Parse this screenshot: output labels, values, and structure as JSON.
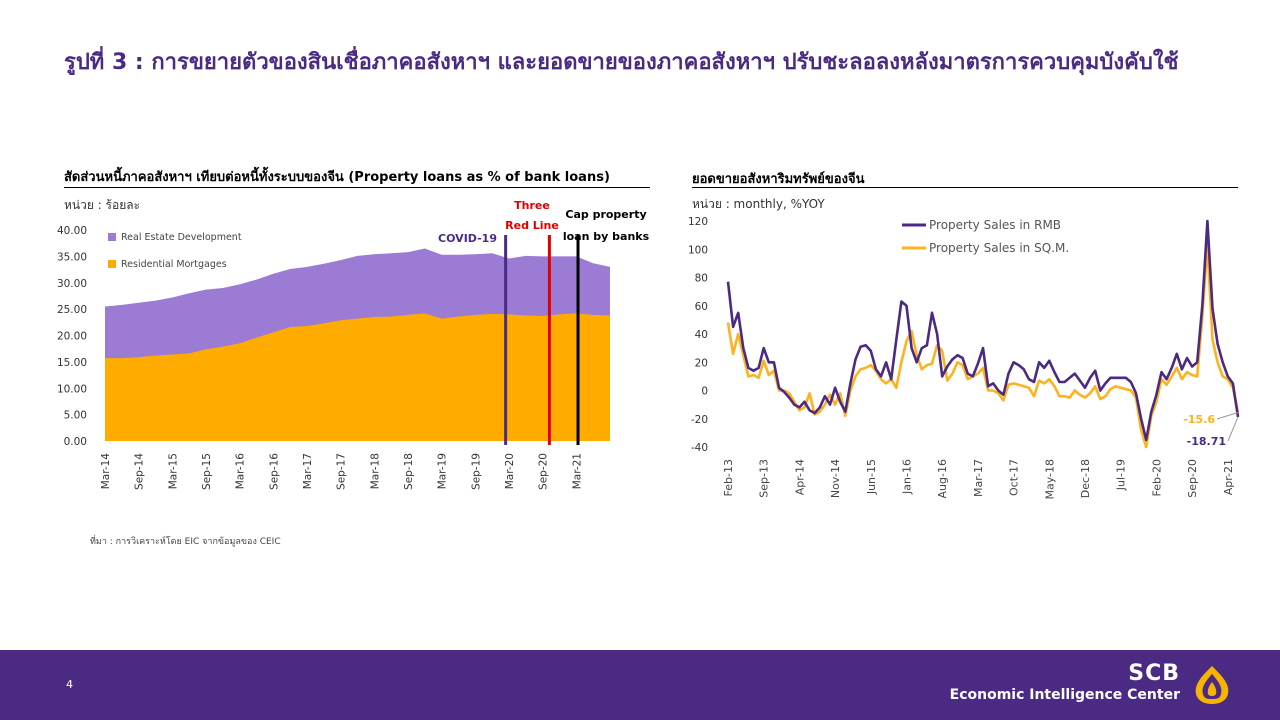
{
  "page": {
    "title": "รูปที่ 3 : การขยายตัวของสินเชื่อภาคอสังหาฯ และยอดขายของภาคอสังหาฯ ปรับชะลอลงหลังมาตรการควบคุมบังคับใช้",
    "source": "ที่มา : การวิเคราะห์โดย EIC จากข้อมูลของ CEIC",
    "page_number": "4",
    "brand_name": "SCB",
    "brand_sub": "Economic Intelligence Center"
  },
  "colors": {
    "purple": "#4b2a84",
    "lavender": "#9b7bd4",
    "orange": "#ffab00",
    "line_purple": "#4b2a84",
    "line_orange": "#ffb21e",
    "red": "#e00000"
  },
  "left_panel": {
    "title": "สัดส่วนหนี้ภาคอสังหาฯ  เทียบต่อหนี้ทั้งระบบของจีน  (Property loans as % of bank loans)",
    "unit": "หน่วย : ร้อยละ"
  },
  "right_panel": {
    "title": "ยอดขายอสังหาริมทรัพย์ของจีน",
    "unit": "หน่วย : monthly, %YOY"
  },
  "chart_data": [
    {
      "type": "area",
      "title": "Property loans as % of bank loans",
      "ylim": [
        0,
        40
      ],
      "yticks": [
        "0.00",
        "5.00",
        "10.00",
        "15.00",
        "20.00",
        "25.00",
        "30.00",
        "35.00",
        "40.00"
      ],
      "x_ticks": [
        "Mar-14",
        "Sep-14",
        "Mar-15",
        "Sep-15",
        "Mar-16",
        "Sep-16",
        "Mar-17",
        "Sep-17",
        "Mar-18",
        "Sep-18",
        "Mar-19",
        "Sep-19",
        "Mar-20",
        "Sep-20",
        "Mar-21"
      ],
      "stacked": true,
      "series": [
        {
          "name": "Residential Mortgages",
          "values": [
            15.7,
            15.7,
            15.9,
            16.2,
            16.4,
            16.6,
            17.4,
            17.9,
            18.5,
            19.6,
            20.6,
            21.6,
            21.8,
            22.3,
            22.9,
            23.2,
            23.5,
            23.6,
            23.9,
            24.2,
            23.2,
            23.6,
            23.9,
            24.1,
            24.0,
            23.8,
            23.7,
            24.0,
            24.2,
            23.9,
            23.8
          ]
        },
        {
          "name": "Real Estate Development",
          "values": [
            9.8,
            10.1,
            10.3,
            10.4,
            10.8,
            11.4,
            11.3,
            11.1,
            11.2,
            11.0,
            11.1,
            11.0,
            11.2,
            11.3,
            11.4,
            11.9,
            11.9,
            12.0,
            11.9,
            12.3,
            12.1,
            11.7,
            11.5,
            11.5,
            10.6,
            11.3,
            11.3,
            11.0,
            10.8,
            9.8,
            9.2
          ]
        }
      ],
      "events": [
        {
          "label": "COVID-19",
          "x_index": 23.8
        },
        {
          "label": "Three Red Line",
          "x_index": 26.4
        },
        {
          "label": "Cap property loan by banks",
          "x_index": 28.1
        }
      ]
    },
    {
      "type": "line",
      "title": "ยอดขายอสังหาริมทรัพย์ของจีน",
      "ylim": [
        -40,
        120
      ],
      "yticks": [
        "-40",
        "-20",
        "0",
        "20",
        "40",
        "60",
        "80",
        "100",
        "120"
      ],
      "x_ticks": [
        "Feb-13",
        "Sep-13",
        "Apr-14",
        "Nov-14",
        "Jun-15",
        "Jan-16",
        "Aug-16",
        "Mar-17",
        "Oct-17",
        "May-18",
        "Dec-18",
        "Jul-19",
        "Feb-20",
        "Sep-20",
        "Apr-21"
      ],
      "series": [
        {
          "name": "Property Sales in RMB",
          "values": [
            77,
            45,
            55,
            30,
            16,
            14,
            16,
            30,
            20,
            20,
            2,
            -1,
            -5,
            -10,
            -12,
            -8,
            -14,
            -16,
            -12,
            -4,
            -10,
            2,
            -8,
            -15,
            5,
            22,
            31,
            32,
            28,
            15,
            10,
            20,
            8,
            36,
            63,
            60,
            30,
            20,
            30,
            32,
            55,
            40,
            10,
            17,
            22,
            25,
            23,
            12,
            10,
            19,
            30,
            3,
            5,
            0,
            -3,
            12,
            20,
            18,
            15,
            8,
            6,
            20,
            16,
            21,
            13,
            6,
            6,
            9,
            12,
            7,
            2,
            9,
            14,
            0,
            5,
            9,
            9,
            9,
            9,
            6,
            -2,
            -20,
            -35,
            -15,
            -3,
            13,
            8,
            16,
            26,
            15,
            23,
            17,
            20,
            60,
            120,
            58,
            33,
            20,
            10,
            5,
            -18.71
          ]
        },
        {
          "name": "Property Sales in SQ.M.",
          "values": [
            48,
            26,
            40,
            25,
            10,
            11,
            9,
            21,
            11,
            14,
            0,
            0,
            -2,
            -8,
            -14,
            -12,
            -2,
            -17,
            -15,
            -10,
            -3,
            -10,
            -2,
            -18,
            0,
            10,
            15,
            16,
            18,
            14,
            8,
            5,
            8,
            2,
            20,
            35,
            42,
            25,
            15,
            18,
            19,
            32,
            28,
            7,
            12,
            20,
            18,
            8,
            10,
            12,
            16,
            0,
            0,
            -2,
            -7,
            4,
            5,
            4,
            3,
            2,
            -4,
            7,
            5,
            8,
            3,
            -4,
            -4,
            -5,
            0,
            -3,
            -5,
            -2,
            3,
            -6,
            -4,
            1,
            3,
            2,
            1,
            0,
            -5,
            -28,
            -40,
            -18,
            -8,
            8,
            4,
            10,
            16,
            8,
            13,
            11,
            10,
            52,
            103,
            36,
            20,
            10,
            8,
            2,
            -15.6
          ]
        }
      ],
      "annotations": [
        {
          "series": "Property Sales in SQ.M.",
          "text": "-15.6"
        },
        {
          "series": "Property Sales in RMB",
          "text": "-18.71"
        }
      ]
    }
  ]
}
